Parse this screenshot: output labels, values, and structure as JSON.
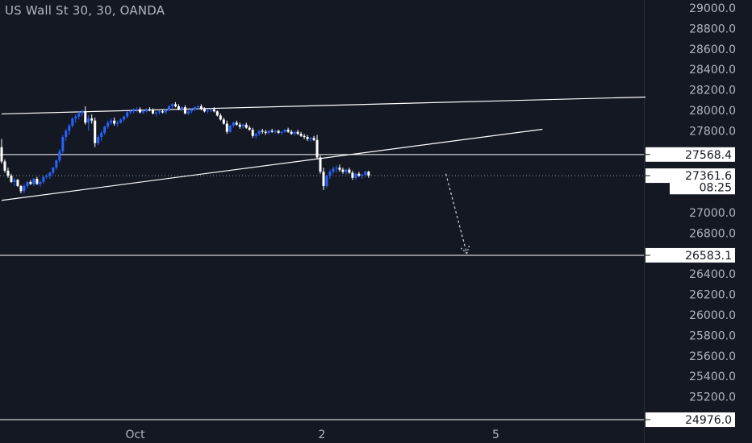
{
  "window": {
    "title": "US Wall St 30, 30, OANDA"
  },
  "colors": {
    "background": "#141823",
    "grid_text": "#b2b5be",
    "up_candle": "#2962ff",
    "down_candle": "#ffffff",
    "line": "#ffffff",
    "label_bg": "#ffffff",
    "label_text": "#131722"
  },
  "chart_data": {
    "type": "candlestick",
    "title": "US Wall St 30, 30, OANDA",
    "ylim": [
      24850,
      29100
    ],
    "y_ticks": [
      29000.0,
      28800.0,
      28600.0,
      28400.0,
      28200.0,
      28000.0,
      27800.0,
      27000.0,
      26800.0,
      26400.0,
      26200.0,
      26000.0,
      25800.0,
      25600.0,
      25400.0,
      25200.0
    ],
    "y_tick_labels": [
      "29000.0",
      "28800.0",
      "28600.0",
      "28400.0",
      "28200.0",
      "28000.0",
      "27800.0",
      "27000.0",
      "26800.0",
      "26400.0",
      "26200.0",
      "26000.0",
      "25800.0",
      "25600.0",
      "25400.0",
      "25200.0"
    ],
    "x_ticks": [
      {
        "label": "Oct",
        "bar": 41.5
      },
      {
        "label": "2",
        "bar": 99.5
      },
      {
        "label": "5",
        "bar": 153.5
      }
    ],
    "bars_visible": 200,
    "price_labels": [
      {
        "id": "resistance",
        "text": "27568.4",
        "value": 27568.4,
        "line": true
      },
      {
        "id": "current",
        "text": "27361.6",
        "value": 27361.6,
        "line": false,
        "dotted": true
      },
      {
        "id": "countdown",
        "text": "08:25",
        "value": 27250.0,
        "line": false
      },
      {
        "id": "target",
        "text": "26583.1",
        "value": 26583.1,
        "line": true
      },
      {
        "id": "low",
        "text": "24976.0",
        "value": 24976.0,
        "line": true
      }
    ],
    "trendlines": [
      {
        "name": "upper-channel",
        "from": {
          "bar": 0,
          "value": 27965
        },
        "to": {
          "bar": 200,
          "value": 28130
        }
      },
      {
        "name": "lower-channel",
        "from": {
          "bar": 0,
          "value": 27120
        },
        "to": {
          "bar": 168,
          "value": 27815
        }
      }
    ],
    "projection": {
      "from": {
        "bar": 138,
        "value": 27380
      },
      "to": {
        "bar": 144.5,
        "value": 26600
      }
    },
    "candles": [
      [
        27640,
        27720,
        27480,
        27500
      ],
      [
        27500,
        27520,
        27390,
        27410
      ],
      [
        27410,
        27440,
        27340,
        27360
      ],
      [
        27360,
        27380,
        27290,
        27300
      ],
      [
        27300,
        27340,
        27260,
        27320
      ],
      [
        27320,
        27330,
        27250,
        27260
      ],
      [
        27260,
        27270,
        27190,
        27210
      ],
      [
        27210,
        27280,
        27190,
        27260
      ],
      [
        27260,
        27310,
        27240,
        27300
      ],
      [
        27300,
        27320,
        27270,
        27280
      ],
      [
        27280,
        27340,
        27260,
        27330
      ],
      [
        27330,
        27350,
        27270,
        27280
      ],
      [
        27280,
        27320,
        27250,
        27300
      ],
      [
        27300,
        27360,
        27280,
        27350
      ],
      [
        27350,
        27380,
        27330,
        27360
      ],
      [
        27360,
        27400,
        27330,
        27390
      ],
      [
        27390,
        27450,
        27370,
        27440
      ],
      [
        27440,
        27520,
        27420,
        27510
      ],
      [
        27510,
        27620,
        27490,
        27600
      ],
      [
        27600,
        27760,
        27580,
        27740
      ],
      [
        27740,
        27820,
        27700,
        27800
      ],
      [
        27800,
        27870,
        27760,
        27850
      ],
      [
        27850,
        27930,
        27830,
        27920
      ],
      [
        27920,
        27960,
        27880,
        27940
      ],
      [
        27940,
        27990,
        27910,
        27970
      ],
      [
        27970,
        28010,
        27940,
        27990
      ],
      [
        27990,
        28040,
        27860,
        27880
      ],
      [
        27880,
        27950,
        27800,
        27920
      ],
      [
        27920,
        27960,
        27870,
        27900
      ],
      [
        27900,
        27930,
        27640,
        27680
      ],
      [
        27680,
        27760,
        27660,
        27740
      ],
      [
        27740,
        27800,
        27700,
        27780
      ],
      [
        27780,
        27850,
        27760,
        27840
      ],
      [
        27840,
        27900,
        27820,
        27880
      ],
      [
        27880,
        27920,
        27860,
        27900
      ],
      [
        27900,
        27930,
        27850,
        27870
      ],
      [
        27870,
        27900,
        27840,
        27880
      ],
      [
        27880,
        27920,
        27870,
        27910
      ],
      [
        27910,
        27950,
        27890,
        27940
      ],
      [
        27940,
        27990,
        27920,
        27980
      ],
      [
        27980,
        28010,
        27960,
        27990
      ],
      [
        27990,
        28020,
        27970,
        28000
      ],
      [
        28000,
        28030,
        27980,
        28010
      ],
      [
        28010,
        28030,
        27970,
        27980
      ],
      [
        27980,
        28000,
        27960,
        27990
      ],
      [
        27990,
        28020,
        27980,
        28010
      ],
      [
        28010,
        28030,
        27990,
        28000
      ],
      [
        28000,
        28020,
        27960,
        27970
      ],
      [
        27970,
        27990,
        27940,
        27980
      ],
      [
        27980,
        28000,
        27960,
        27990
      ],
      [
        27990,
        28010,
        27970,
        27980
      ],
      [
        27980,
        28010,
        27960,
        28000
      ],
      [
        28000,
        28050,
        27990,
        28040
      ],
      [
        28040,
        28070,
        28020,
        28060
      ],
      [
        28060,
        28080,
        28030,
        28040
      ],
      [
        28040,
        28060,
        28000,
        28010
      ],
      [
        28010,
        28040,
        27990,
        28030
      ],
      [
        28030,
        28050,
        27960,
        27970
      ],
      [
        27970,
        28000,
        27950,
        27990
      ],
      [
        27990,
        28020,
        27970,
        28010
      ],
      [
        28010,
        28040,
        27990,
        28030
      ],
      [
        28030,
        28050,
        28010,
        28040
      ],
      [
        28040,
        28060,
        28000,
        28020
      ],
      [
        28020,
        28030,
        27980,
        27990
      ],
      [
        27990,
        28010,
        27970,
        28000
      ],
      [
        28000,
        28020,
        27980,
        28010
      ],
      [
        28010,
        28030,
        27980,
        27990
      ],
      [
        27990,
        28000,
        27940,
        27950
      ],
      [
        27950,
        27970,
        27900,
        27910
      ],
      [
        27910,
        27930,
        27860,
        27870
      ],
      [
        27870,
        27900,
        27770,
        27790
      ],
      [
        27790,
        27860,
        27780,
        27850
      ],
      [
        27850,
        27890,
        27830,
        27880
      ],
      [
        27880,
        27900,
        27850,
        27860
      ],
      [
        27860,
        27880,
        27820,
        27840
      ],
      [
        27840,
        27870,
        27820,
        27860
      ],
      [
        27860,
        27880,
        27820,
        27830
      ],
      [
        27830,
        27850,
        27800,
        27810
      ],
      [
        27810,
        27830,
        27730,
        27750
      ],
      [
        27750,
        27780,
        27720,
        27770
      ],
      [
        27770,
        27810,
        27750,
        27800
      ],
      [
        27800,
        27820,
        27770,
        27790
      ],
      [
        27790,
        27810,
        27760,
        27780
      ],
      [
        27780,
        27810,
        27760,
        27800
      ],
      [
        27800,
        27820,
        27780,
        27790
      ],
      [
        27790,
        27810,
        27770,
        27800
      ],
      [
        27800,
        27810,
        27770,
        27780
      ],
      [
        27780,
        27800,
        27760,
        27790
      ],
      [
        27790,
        27820,
        27780,
        27810
      ],
      [
        27810,
        27830,
        27780,
        27790
      ],
      [
        27790,
        27810,
        27760,
        27770
      ],
      [
        27770,
        27800,
        27750,
        27790
      ],
      [
        27790,
        27810,
        27760,
        27770
      ],
      [
        27770,
        27790,
        27740,
        27750
      ],
      [
        27750,
        27770,
        27720,
        27740
      ],
      [
        27740,
        27760,
        27700,
        27720
      ],
      [
        27720,
        27740,
        27690,
        27730
      ],
      [
        27730,
        27750,
        27700,
        27710
      ],
      [
        27710,
        27760,
        27520,
        27540
      ],
      [
        27540,
        27560,
        27380,
        27400
      ],
      [
        27400,
        27440,
        27220,
        27260
      ],
      [
        27260,
        27370,
        27240,
        27360
      ],
      [
        27360,
        27420,
        27330,
        27400
      ],
      [
        27400,
        27450,
        27380,
        27430
      ],
      [
        27430,
        27460,
        27390,
        27440
      ],
      [
        27440,
        27470,
        27400,
        27420
      ],
      [
        27420,
        27440,
        27380,
        27400
      ],
      [
        27400,
        27430,
        27370,
        27420
      ],
      [
        27420,
        27440,
        27380,
        27390
      ],
      [
        27390,
        27410,
        27320,
        27340
      ],
      [
        27340,
        27390,
        27320,
        27380
      ],
      [
        27380,
        27400,
        27350,
        27360
      ],
      [
        27360,
        27380,
        27330,
        27370
      ],
      [
        27370,
        27410,
        27350,
        27400
      ],
      [
        27400,
        27410,
        27340,
        27361.6
      ]
    ]
  }
}
